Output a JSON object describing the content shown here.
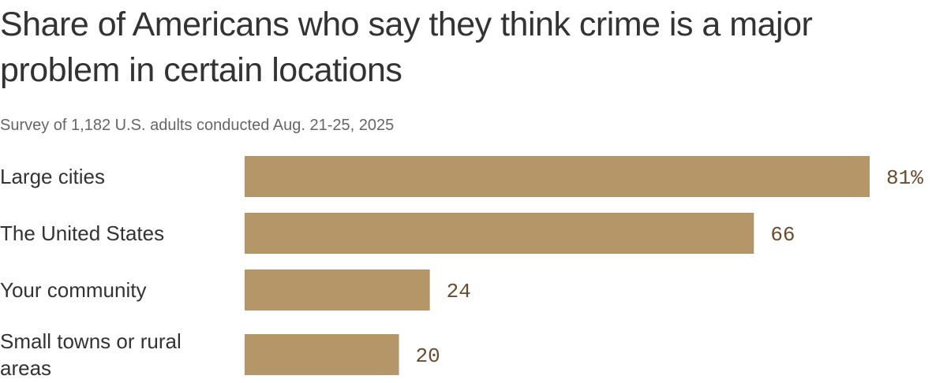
{
  "chart_data": {
    "type": "bar",
    "orientation": "horizontal",
    "title": "Share of Americans who say they think crime is a major problem in certain locations",
    "subtitle": "Survey of 1,182 U.S. adults conducted Aug. 21-25, 2025",
    "categories": [
      "Large cities",
      "The United States",
      "Your community",
      "Small towns or rural areas"
    ],
    "values": [
      81,
      66,
      24,
      20
    ],
    "value_labels": [
      "81%",
      "66",
      "24",
      "20"
    ],
    "xlabel": "",
    "ylabel": "",
    "xlim": [
      0,
      81
    ],
    "grid": false,
    "legend": "none",
    "colors": {
      "bar": "#b59669",
      "value_label": "#6b4c2e",
      "title": "#333333",
      "subtitle": "#666666"
    }
  }
}
